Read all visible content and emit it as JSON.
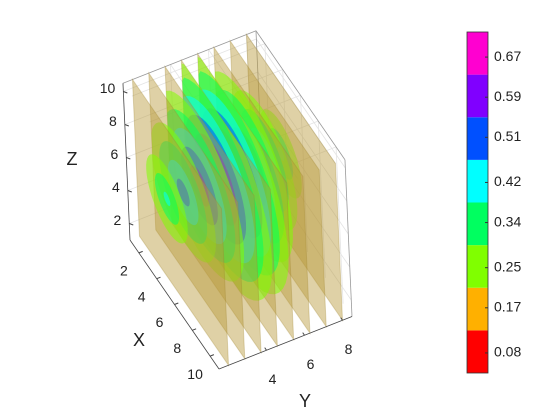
{
  "chart_data": {
    "type": "contourslice",
    "xlabel": "X",
    "ylabel": "Y",
    "zlabel": "Z",
    "xlim": [
      1,
      11
    ],
    "ylim": [
      1.5,
      8.5
    ],
    "zlim": [
      1,
      10.5
    ],
    "xticks": [
      2,
      4,
      6,
      8,
      10
    ],
    "yticks": [
      4,
      6,
      8
    ],
    "zticks": [
      2,
      4,
      6,
      8,
      10
    ],
    "grid": true,
    "colorbar": {
      "clim": [
        0.04,
        0.72
      ],
      "ticks": [
        0.08,
        0.17,
        0.25,
        0.34,
        0.42,
        0.51,
        0.59,
        0.67
      ],
      "colors": [
        "#ff0000",
        "#ffb000",
        "#80ff00",
        "#00ff60",
        "#00ffff",
        "#0050ff",
        "#8000ff",
        "#ff00d0"
      ]
    }
  }
}
